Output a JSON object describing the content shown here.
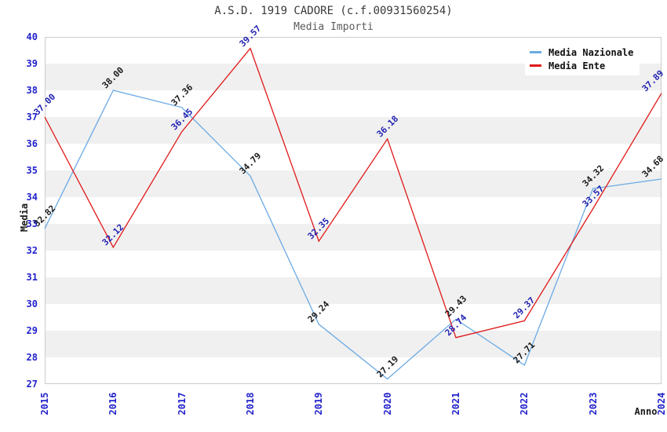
{
  "header": {
    "title": "A.S.D. 1919 CADORE (c.f.00931560254)",
    "subtitle": "Media Importi"
  },
  "chart_data": {
    "type": "line",
    "title": "A.S.D. 1919 CADORE (c.f.00931560254)",
    "subtitle": "Media Importi",
    "xlabel": "Anno",
    "ylabel": "Media",
    "x": [
      2015,
      2016,
      2017,
      2018,
      2019,
      2020,
      2021,
      2022,
      2023,
      2024
    ],
    "series": [
      {
        "name": "Media Nazionale",
        "color": "#6aaae4",
        "label_color": "#1a1a1a",
        "values": [
          32.82,
          38.0,
          37.36,
          34.79,
          29.24,
          27.19,
          29.43,
          27.71,
          34.32,
          34.68
        ]
      },
      {
        "name": "Media Ente",
        "color": "#e01818",
        "label_color": "#2222b2",
        "values": [
          37.0,
          32.12,
          36.45,
          39.57,
          32.35,
          36.18,
          28.74,
          29.37,
          33.57,
          37.89
        ]
      }
    ],
    "ylim": [
      27,
      40
    ],
    "ytick_step": 1,
    "grid": "horizontal-bands",
    "band_color": "#f0f0f0",
    "plot_border_color": "#cccccc",
    "tick_label_color": "#2222cc",
    "legend_position": "top-right"
  }
}
